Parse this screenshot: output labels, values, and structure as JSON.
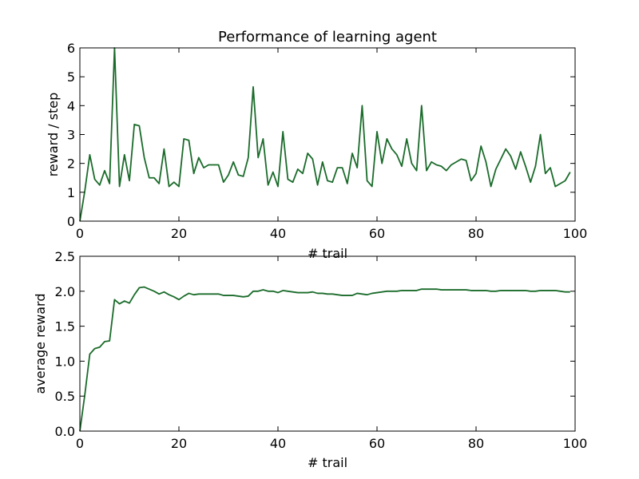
{
  "chart_data": [
    {
      "type": "line",
      "title": "Performance of learning agent",
      "xlabel": "# trail",
      "ylabel": "reward / step",
      "xlim": [
        0,
        100
      ],
      "ylim": [
        0,
        6
      ],
      "xticks": [
        "0",
        "20",
        "40",
        "60",
        "80",
        "100"
      ],
      "yticks": [
        "0",
        "1",
        "2",
        "3",
        "4",
        "5",
        "6"
      ],
      "grid": false,
      "series": [
        {
          "color": "#1a6b2a",
          "x": [
            0,
            1,
            2,
            3,
            4,
            5,
            6,
            7,
            8,
            9,
            10,
            11,
            12,
            13,
            14,
            15,
            16,
            17,
            18,
            19,
            20,
            21,
            22,
            23,
            24,
            25,
            26,
            27,
            28,
            29,
            30,
            31,
            32,
            33,
            34,
            35,
            36,
            37,
            38,
            39,
            40,
            41,
            42,
            43,
            44,
            45,
            46,
            47,
            48,
            49,
            50,
            51,
            52,
            53,
            54,
            55,
            56,
            57,
            58,
            59,
            60,
            61,
            62,
            63,
            64,
            65,
            66,
            67,
            68,
            69,
            70,
            71,
            72,
            73,
            74,
            75,
            76,
            77,
            78,
            79,
            80,
            81,
            82,
            83,
            84,
            85,
            86,
            87,
            88,
            89,
            90,
            91,
            92,
            93,
            94,
            95,
            96,
            97,
            98,
            99
          ],
          "y": [
            0.0,
            1.05,
            2.3,
            1.45,
            1.25,
            1.75,
            1.3,
            6.0,
            1.2,
            2.3,
            1.4,
            3.35,
            3.3,
            2.2,
            1.5,
            1.5,
            1.3,
            2.5,
            1.2,
            1.35,
            1.2,
            2.85,
            2.8,
            1.65,
            2.2,
            1.85,
            1.95,
            1.95,
            1.95,
            1.35,
            1.6,
            2.05,
            1.6,
            1.55,
            2.2,
            4.65,
            2.2,
            2.85,
            1.25,
            1.7,
            1.2,
            3.1,
            1.45,
            1.35,
            1.8,
            1.65,
            2.35,
            2.15,
            1.25,
            2.05,
            1.4,
            1.35,
            1.85,
            1.85,
            1.3,
            2.35,
            1.85,
            4.0,
            1.4,
            1.2,
            3.1,
            2.0,
            2.85,
            2.5,
            2.3,
            1.9,
            2.85,
            2.0,
            1.75,
            4.0,
            1.75,
            2.05,
            1.95,
            1.9,
            1.75,
            1.95,
            2.05,
            2.15,
            2.1,
            1.4,
            1.65,
            2.6,
            2.05,
            1.2,
            1.8,
            2.15,
            2.5,
            2.25,
            1.8,
            2.4,
            1.9,
            1.35,
            1.9,
            3.0,
            1.65,
            1.85,
            1.2,
            1.3,
            1.4,
            1.7
          ]
        }
      ]
    },
    {
      "type": "line",
      "title": "",
      "xlabel": "# trail",
      "ylabel": "average reward",
      "xlim": [
        0,
        100
      ],
      "ylim": [
        0,
        2.5
      ],
      "xticks": [
        "0",
        "20",
        "40",
        "60",
        "80",
        "100"
      ],
      "yticks": [
        "0.0",
        "0.5",
        "1.0",
        "1.5",
        "2.0",
        "2.5"
      ],
      "grid": false,
      "series": [
        {
          "color": "#1a6b2a",
          "x": [
            0,
            1,
            2,
            3,
            4,
            5,
            6,
            7,
            8,
            9,
            10,
            11,
            12,
            13,
            14,
            15,
            16,
            17,
            18,
            19,
            20,
            21,
            22,
            23,
            24,
            25,
            26,
            27,
            28,
            29,
            30,
            31,
            32,
            33,
            34,
            35,
            36,
            37,
            38,
            39,
            40,
            41,
            42,
            43,
            44,
            45,
            46,
            47,
            48,
            49,
            50,
            51,
            52,
            53,
            54,
            55,
            56,
            57,
            58,
            59,
            60,
            61,
            62,
            63,
            64,
            65,
            66,
            67,
            68,
            69,
            70,
            71,
            72,
            73,
            74,
            75,
            76,
            77,
            78,
            79,
            80,
            81,
            82,
            83,
            84,
            85,
            86,
            87,
            88,
            89,
            90,
            91,
            92,
            93,
            94,
            95,
            96,
            97,
            98,
            99
          ],
          "y": [
            0.0,
            0.52,
            1.1,
            1.18,
            1.2,
            1.28,
            1.29,
            1.88,
            1.82,
            1.86,
            1.83,
            1.95,
            2.05,
            2.06,
            2.03,
            2.0,
            1.96,
            1.99,
            1.95,
            1.92,
            1.88,
            1.93,
            1.97,
            1.95,
            1.96,
            1.96,
            1.96,
            1.96,
            1.96,
            1.94,
            1.94,
            1.94,
            1.93,
            1.92,
            1.93,
            2.0,
            2.0,
            2.02,
            2.0,
            2.0,
            1.98,
            2.01,
            2.0,
            1.99,
            1.98,
            1.98,
            1.98,
            1.99,
            1.97,
            1.97,
            1.96,
            1.96,
            1.95,
            1.94,
            1.94,
            1.94,
            1.97,
            1.96,
            1.95,
            1.97,
            1.98,
            1.99,
            2.0,
            2.0,
            2.0,
            2.01,
            2.01,
            2.01,
            2.01,
            2.03,
            2.03,
            2.03,
            2.03,
            2.02,
            2.02,
            2.02,
            2.02,
            2.02,
            2.02,
            2.01,
            2.01,
            2.01,
            2.01,
            2.0,
            2.0,
            2.01,
            2.01,
            2.01,
            2.01,
            2.01,
            2.01,
            2.0,
            2.0,
            2.01,
            2.01,
            2.01,
            2.01,
            2.0,
            1.99,
            1.99
          ]
        }
      ]
    }
  ]
}
